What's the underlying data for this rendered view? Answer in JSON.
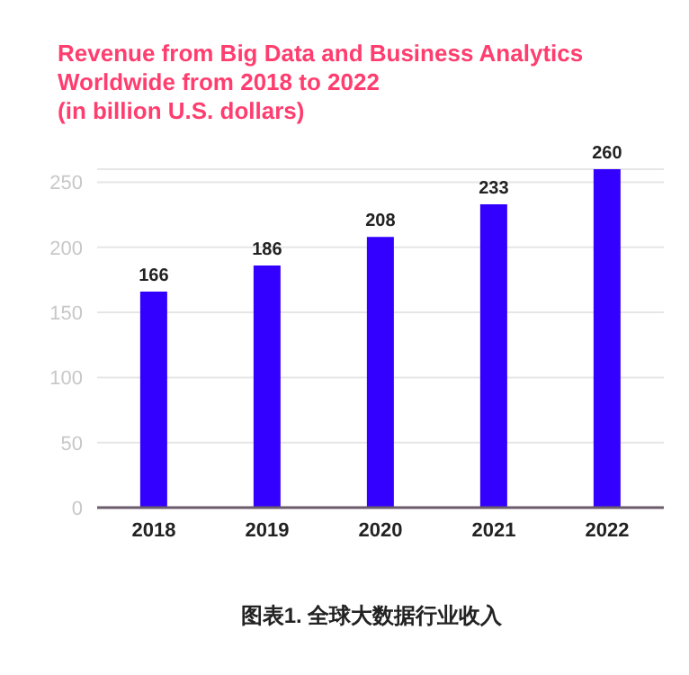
{
  "chart_data": {
    "type": "bar",
    "title": "Revenue from Big Data and Business Analytics\nWorldwide from 2018 to 2022\n(in billion U.S. dollars)",
    "categories": [
      "2018",
      "2019",
      "2020",
      "2021",
      "2022"
    ],
    "values": [
      166,
      186,
      208,
      233,
      260
    ],
    "color": "#3300ff",
    "ylim": [
      0,
      260
    ],
    "yticks": [
      0,
      50,
      100,
      150,
      200,
      250
    ],
    "grid": "y",
    "data_labels": true,
    "annotations": [
      "图表1. 全球大数据行业收入"
    ]
  }
}
